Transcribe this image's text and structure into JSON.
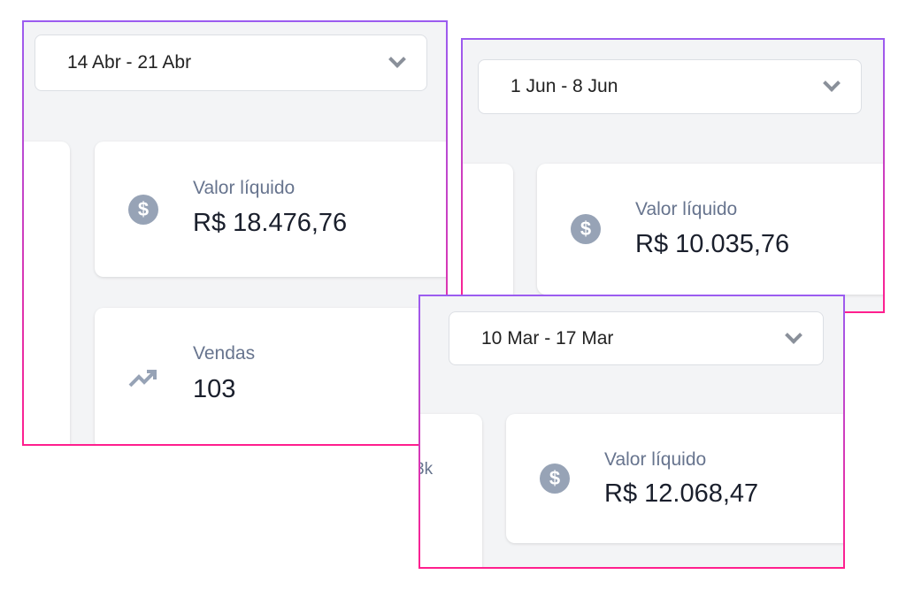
{
  "panels": [
    {
      "date_range": "14 Abr - 21 Abr",
      "cards": [
        {
          "icon": "dollar-icon",
          "label": "Valor líquido",
          "value": "R$ 18.476,76"
        },
        {
          "icon": "trending-up-icon",
          "label": "Vendas",
          "value": "103"
        }
      ]
    },
    {
      "date_range": "1 Jun - 8 Jun",
      "cards": [
        {
          "icon": "dollar-icon",
          "label": "Valor líquido",
          "value": "R$ 10.035,76"
        }
      ]
    },
    {
      "date_range": "10 Mar - 17 Mar",
      "partial_text": "3k",
      "cards": [
        {
          "icon": "dollar-icon",
          "label": "Valor líquido",
          "value": "R$ 12.068,47"
        }
      ]
    }
  ],
  "colors": {
    "border_top": "#9b5cf0",
    "border_bottom": "#ff1f8e",
    "icon": "#97a3b6",
    "label": "#67748e"
  }
}
